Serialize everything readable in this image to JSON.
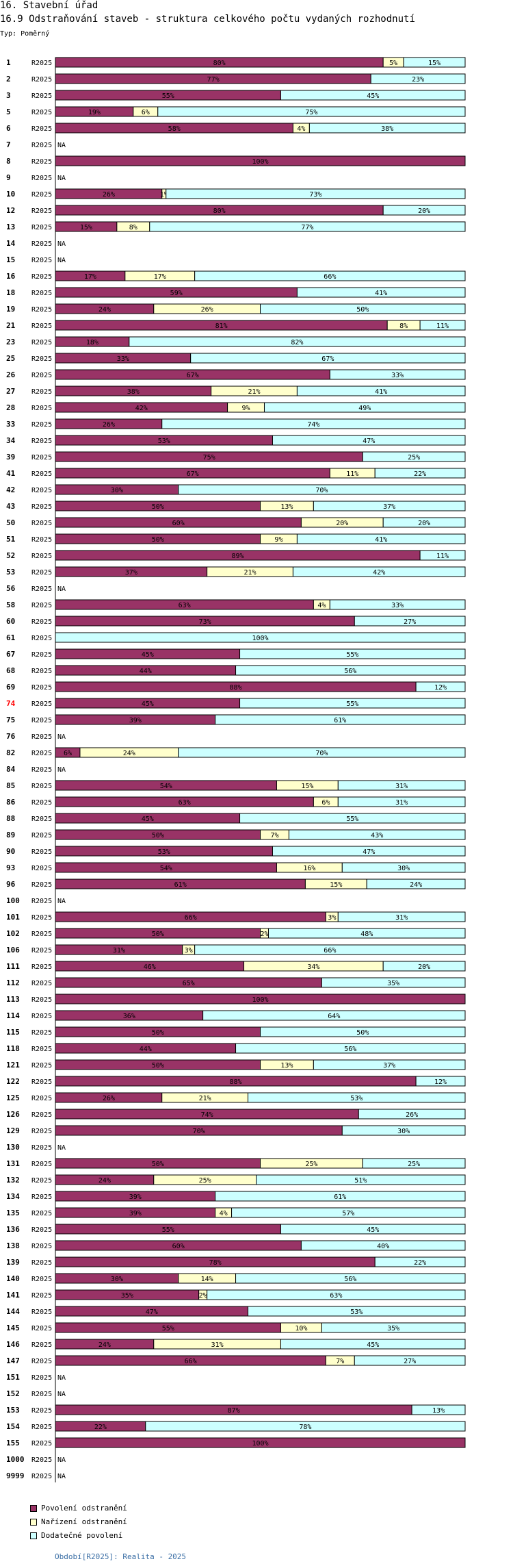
{
  "header": {
    "title": "16. Stavební úřad",
    "subtitle": "16.9 Odstraňování staveb - struktura celkového počtu vydaných rozhodnutí",
    "type_label": "Typ: Poměrný"
  },
  "colors": {
    "s1": "#993366",
    "s2": "#ffffcc",
    "s3": "#ccffff",
    "highlight": "#ff0000"
  },
  "chart_data": {
    "type": "bar",
    "orientation": "horizontal",
    "stacked": "percent",
    "period": "R2025",
    "na_label": "NA",
    "highlight_category": "74",
    "xlim": [
      0,
      100
    ],
    "series_names": [
      "Povolení odstranění",
      "Nařízení odstranění",
      "Dodatečné povolení"
    ],
    "rows": [
      {
        "id": "1",
        "v": [
          80,
          5,
          15
        ]
      },
      {
        "id": "2",
        "v": [
          77,
          0,
          23
        ]
      },
      {
        "id": "3",
        "v": [
          55,
          0,
          45
        ]
      },
      {
        "id": "5",
        "v": [
          19,
          6,
          75
        ]
      },
      {
        "id": "6",
        "v": [
          58,
          4,
          38
        ]
      },
      {
        "id": "7",
        "v": null
      },
      {
        "id": "8",
        "v": [
          100,
          0,
          0
        ]
      },
      {
        "id": "9",
        "v": null
      },
      {
        "id": "10",
        "v": [
          26,
          1,
          73
        ]
      },
      {
        "id": "12",
        "v": [
          80,
          0,
          20
        ]
      },
      {
        "id": "13",
        "v": [
          15,
          8,
          77
        ]
      },
      {
        "id": "14",
        "v": null
      },
      {
        "id": "15",
        "v": null
      },
      {
        "id": "16",
        "v": [
          17,
          17,
          66
        ]
      },
      {
        "id": "18",
        "v": [
          59,
          0,
          41
        ]
      },
      {
        "id": "19",
        "v": [
          24,
          26,
          50
        ]
      },
      {
        "id": "21",
        "v": [
          81,
          8,
          11
        ]
      },
      {
        "id": "23",
        "v": [
          18,
          0,
          82
        ]
      },
      {
        "id": "25",
        "v": [
          33,
          0,
          67
        ]
      },
      {
        "id": "26",
        "v": [
          67,
          0,
          33
        ]
      },
      {
        "id": "27",
        "v": [
          38,
          21,
          41
        ]
      },
      {
        "id": "28",
        "v": [
          42,
          9,
          49
        ]
      },
      {
        "id": "33",
        "v": [
          26,
          0,
          74
        ]
      },
      {
        "id": "34",
        "v": [
          53,
          0,
          47
        ]
      },
      {
        "id": "39",
        "v": [
          75,
          0,
          25
        ]
      },
      {
        "id": "41",
        "v": [
          67,
          11,
          22
        ]
      },
      {
        "id": "42",
        "v": [
          30,
          0,
          70
        ]
      },
      {
        "id": "43",
        "v": [
          50,
          13,
          37
        ]
      },
      {
        "id": "50",
        "v": [
          60,
          20,
          20
        ]
      },
      {
        "id": "51",
        "v": [
          50,
          9,
          41
        ]
      },
      {
        "id": "52",
        "v": [
          89,
          0,
          11
        ]
      },
      {
        "id": "53",
        "v": [
          37,
          21,
          42
        ]
      },
      {
        "id": "56",
        "v": null
      },
      {
        "id": "58",
        "v": [
          63,
          4,
          33
        ]
      },
      {
        "id": "60",
        "v": [
          73,
          0,
          27
        ]
      },
      {
        "id": "61",
        "v": [
          0,
          0,
          100
        ]
      },
      {
        "id": "67",
        "v": [
          45,
          0,
          55
        ]
      },
      {
        "id": "68",
        "v": [
          44,
          0,
          56
        ]
      },
      {
        "id": "69",
        "v": [
          88,
          0,
          12
        ]
      },
      {
        "id": "74",
        "v": [
          45,
          0,
          55
        ]
      },
      {
        "id": "75",
        "v": [
          39,
          0,
          61
        ]
      },
      {
        "id": "76",
        "v": null
      },
      {
        "id": "82",
        "v": [
          6,
          24,
          70
        ]
      },
      {
        "id": "84",
        "v": null
      },
      {
        "id": "85",
        "v": [
          54,
          15,
          31
        ]
      },
      {
        "id": "86",
        "v": [
          63,
          6,
          31
        ]
      },
      {
        "id": "88",
        "v": [
          45,
          0,
          55
        ]
      },
      {
        "id": "89",
        "v": [
          50,
          7,
          43
        ]
      },
      {
        "id": "90",
        "v": [
          53,
          0,
          47
        ]
      },
      {
        "id": "93",
        "v": [
          54,
          16,
          30
        ]
      },
      {
        "id": "96",
        "v": [
          61,
          15,
          24
        ]
      },
      {
        "id": "100",
        "v": null
      },
      {
        "id": "101",
        "v": [
          66,
          3,
          31
        ]
      },
      {
        "id": "102",
        "v": [
          50,
          2,
          48
        ]
      },
      {
        "id": "106",
        "v": [
          31,
          3,
          66
        ]
      },
      {
        "id": "111",
        "v": [
          46,
          34,
          20
        ]
      },
      {
        "id": "112",
        "v": [
          65,
          0,
          35
        ]
      },
      {
        "id": "113",
        "v": [
          100,
          0,
          0
        ]
      },
      {
        "id": "114",
        "v": [
          36,
          0,
          64
        ]
      },
      {
        "id": "115",
        "v": [
          50,
          0,
          50
        ]
      },
      {
        "id": "118",
        "v": [
          44,
          0,
          56
        ]
      },
      {
        "id": "121",
        "v": [
          50,
          13,
          37
        ]
      },
      {
        "id": "122",
        "v": [
          88,
          0,
          12
        ]
      },
      {
        "id": "125",
        "v": [
          26,
          21,
          53
        ]
      },
      {
        "id": "126",
        "v": [
          74,
          0,
          26
        ]
      },
      {
        "id": "129",
        "v": [
          70,
          0,
          30
        ]
      },
      {
        "id": "130",
        "v": null
      },
      {
        "id": "131",
        "v": [
          50,
          25,
          25
        ]
      },
      {
        "id": "132",
        "v": [
          24,
          25,
          51
        ]
      },
      {
        "id": "134",
        "v": [
          39,
          0,
          61
        ]
      },
      {
        "id": "135",
        "v": [
          39,
          4,
          57
        ]
      },
      {
        "id": "136",
        "v": [
          55,
          0,
          45
        ]
      },
      {
        "id": "138",
        "v": [
          60,
          0,
          40
        ]
      },
      {
        "id": "139",
        "v": [
          78,
          0,
          22
        ]
      },
      {
        "id": "140",
        "v": [
          30,
          14,
          56
        ]
      },
      {
        "id": "141",
        "v": [
          35,
          2,
          63
        ]
      },
      {
        "id": "144",
        "v": [
          47,
          0,
          53
        ]
      },
      {
        "id": "145",
        "v": [
          55,
          10,
          35
        ]
      },
      {
        "id": "146",
        "v": [
          24,
          31,
          45
        ]
      },
      {
        "id": "147",
        "v": [
          66,
          7,
          27
        ]
      },
      {
        "id": "151",
        "v": null
      },
      {
        "id": "152",
        "v": null
      },
      {
        "id": "153",
        "v": [
          87,
          0,
          13
        ]
      },
      {
        "id": "154",
        "v": [
          22,
          0,
          78
        ]
      },
      {
        "id": "155",
        "v": [
          100,
          0,
          0
        ]
      },
      {
        "id": "1000",
        "v": null
      },
      {
        "id": "9999",
        "v": null
      }
    ]
  },
  "legend": {
    "items": [
      "Povolení odstranění",
      "Nařízení odstranění",
      "Dodatečné povolení"
    ]
  },
  "footer": {
    "period_text": "Období[R2025]: Realita - 2025"
  }
}
